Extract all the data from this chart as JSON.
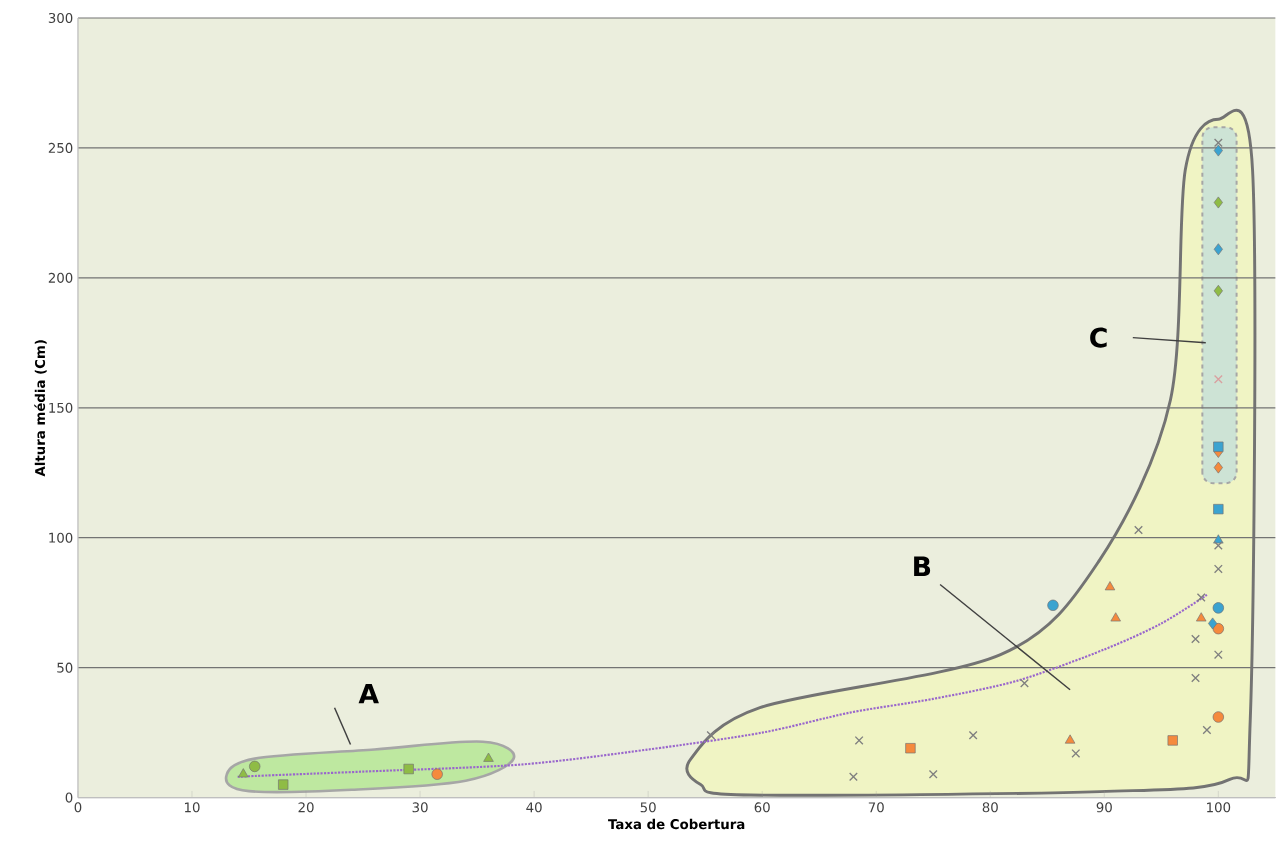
{
  "chart_data": {
    "type": "scatter",
    "xlabel": "Taxa de Cobertura",
    "ylabel": "Altura média (Cm)",
    "xlim": [
      0,
      105
    ],
    "xticks": [
      0,
      10,
      20,
      30,
      40,
      50,
      60,
      70,
      80,
      90,
      100
    ],
    "ylim": [
      0,
      300
    ],
    "yticks": [
      0,
      50,
      100,
      150,
      200,
      250,
      300
    ],
    "grid": "y",
    "annotations": [
      "A",
      "B",
      "C"
    ],
    "series": [
      {
        "marker": "triangle",
        "color": "#8fbc45",
        "x": [
          14.5,
          36
        ],
        "values": [
          9,
          15
        ]
      },
      {
        "marker": "circle",
        "color": "#8fbc45",
        "x": [
          15.5
        ],
        "values": [
          12
        ]
      },
      {
        "marker": "square",
        "color": "#8fbc45",
        "x": [
          18,
          29
        ],
        "values": [
          5,
          11
        ]
      },
      {
        "marker": "diamond",
        "color": "#8fbc45",
        "x": [
          100,
          100
        ],
        "values": [
          229,
          195
        ]
      },
      {
        "marker": "circle",
        "color": "#f58a3d",
        "x": [
          31.5,
          100,
          100
        ],
        "values": [
          9,
          65,
          31
        ]
      },
      {
        "marker": "square",
        "color": "#f58a3d",
        "x": [
          73,
          96
        ],
        "values": [
          19,
          22
        ]
      },
      {
        "marker": "triangle",
        "color": "#f58a3d",
        "x": [
          90.5,
          91,
          98.5,
          87
        ],
        "values": [
          81,
          69,
          69,
          22
        ]
      },
      {
        "marker": "diamond",
        "color": "#f58a3d",
        "x": [
          100,
          100
        ],
        "values": [
          133,
          127
        ]
      },
      {
        "marker": "circle",
        "color": "#3ba3d0",
        "x": [
          85.5,
          100
        ],
        "values": [
          74,
          73
        ]
      },
      {
        "marker": "square",
        "color": "#3ba3d0",
        "x": [
          100,
          100
        ],
        "values": [
          111,
          135
        ]
      },
      {
        "marker": "triangle",
        "color": "#3ba3d0",
        "x": [
          100
        ],
        "values": [
          99
        ]
      },
      {
        "marker": "diamond",
        "color": "#3ba3d0",
        "x": [
          99.5,
          100,
          100
        ],
        "values": [
          67,
          249,
          211
        ]
      },
      {
        "marker": "cross",
        "color": "#7f7f7f",
        "x": [
          55.5,
          68.5,
          68,
          75,
          78.5,
          83,
          93,
          100,
          100,
          98.5,
          98,
          100,
          98,
          99,
          87.5,
          100
        ],
        "values": [
          24,
          22,
          8,
          9,
          24,
          44,
          103,
          97,
          88,
          77,
          61,
          55,
          46,
          26,
          17,
          252
        ]
      },
      {
        "marker": "cross",
        "color": "#d9a0a0",
        "x": [
          100
        ],
        "values": [
          161
        ]
      },
      {
        "type": "line",
        "marker": "none",
        "line_style": "dotted",
        "color": "#9966cc",
        "x": [
          14,
          16.5,
          25,
          38.8,
          50,
          60,
          67.7,
          75,
          82.4,
          90,
          95,
          99
        ],
        "values": [
          8,
          8.5,
          10,
          12.7,
          18.5,
          25,
          32.7,
          38,
          45,
          57,
          67,
          78
        ]
      }
    ]
  }
}
